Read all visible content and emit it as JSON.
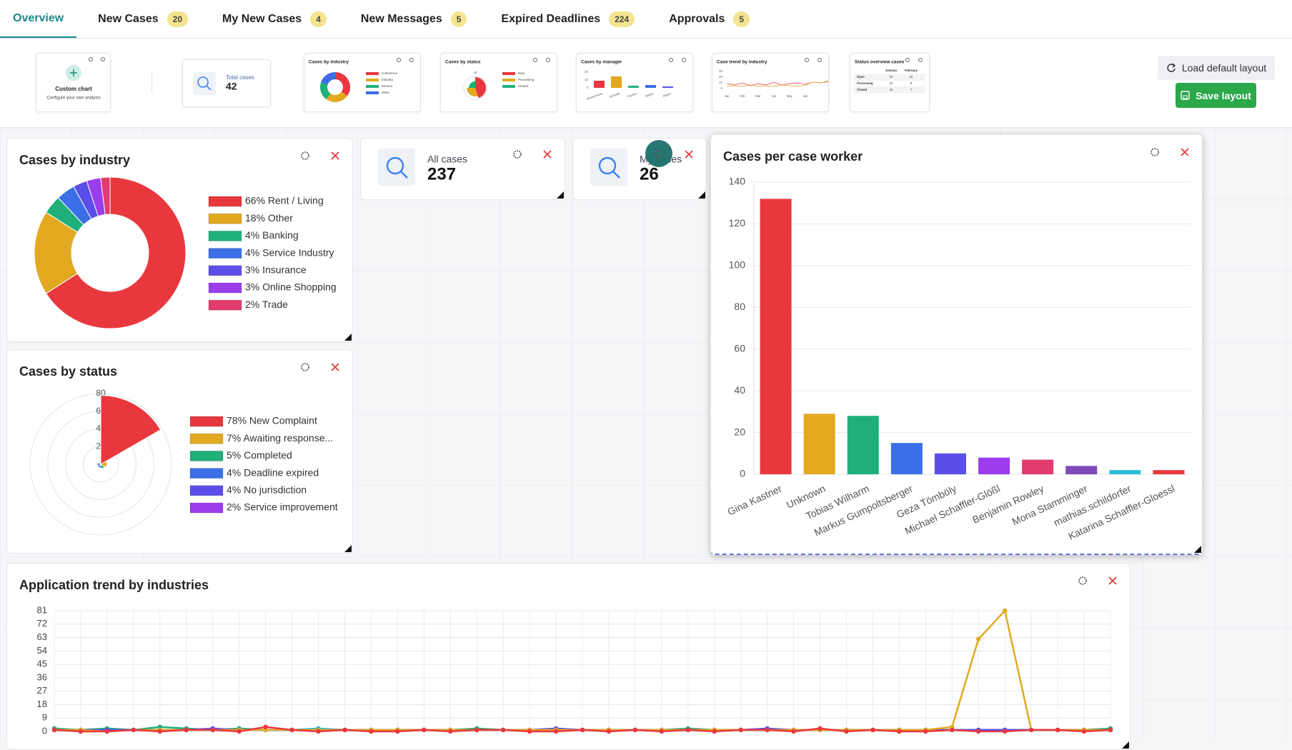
{
  "tabs": [
    {
      "label": "Overview"
    },
    {
      "label": "New Cases",
      "badge": 20
    },
    {
      "label": "My New Cases",
      "badge": 4
    },
    {
      "label": "New Messages",
      "badge": 5
    },
    {
      "label": "Expired Deadlines",
      "badge": 224
    },
    {
      "label": "Approvals",
      "badge": 5
    }
  ],
  "toolbar": {
    "custom_chart": {
      "title": "Custom chart",
      "subtitle": "Configure your own analysis"
    },
    "total_cases": {
      "label": "Total cases",
      "value": 42
    },
    "thumbnails": [
      {
        "title": "Cases by industry",
        "labels": [
          "Commerce",
          "Industry",
          "Service",
          "Other"
        ]
      },
      {
        "title": "Cases by status",
        "labels": [
          "New",
          "Processing",
          "Closed"
        ],
        "ticks": [
          "40"
        ]
      },
      {
        "title": "Cases by manager",
        "labels": [
          "Mustermann",
          "Schmidt",
          "Fischer",
          "Weber",
          "Meyer"
        ],
        "ticks": [
          "20",
          "10",
          "0"
        ]
      },
      {
        "title": "Case trend by industry",
        "labels": [
          "Jan",
          "Feb",
          "Mar",
          "Apr",
          "May",
          "Jun"
        ],
        "ticks": [
          "30",
          "20",
          "10",
          "0"
        ]
      },
      {
        "title": "Status overview cases",
        "columns": [
          "January",
          "February"
        ],
        "rows": [
          [
            "Open",
            "10",
            "10"
          ],
          [
            "Processing",
            "12",
            "9"
          ],
          [
            "Closed",
            "15",
            "7"
          ]
        ]
      }
    ],
    "load_default": "Load default layout",
    "save": "Save layout"
  },
  "stats": [
    {
      "label": "All cases",
      "value": 237
    },
    {
      "label": "My cases",
      "value": 26
    }
  ],
  "chart_data": [
    {
      "type": "pie",
      "title": "Cases by industry",
      "categories": [
        "66% Rent / Living",
        "18% Other",
        "4% Banking",
        "4% Service Industry",
        "3% Insurance",
        "3% Online Shopping",
        "2% Trade"
      ],
      "values": [
        66,
        18,
        4,
        4,
        3,
        3,
        2
      ],
      "colors": [
        "#e8383d",
        "#e2a920",
        "#1fb07a",
        "#3b6fe8",
        "#5b4ee8",
        "#9b3ded",
        "#e23b6d"
      ]
    },
    {
      "type": "polar",
      "title": "Cases by status",
      "categories": [
        "78% New Complaint",
        "7% Awaiting response...",
        "5% Completed",
        "4% Deadline expired",
        "4% No jurisdiction",
        "2% Service improvement"
      ],
      "values": [
        78,
        7,
        5,
        4,
        4,
        2
      ],
      "colors": [
        "#e8383d",
        "#e2a920",
        "#1fb07a",
        "#3b6fe8",
        "#5b4ee8",
        "#9b3ded"
      ],
      "rlim": [
        0,
        80
      ],
      "rticks": [
        20,
        40,
        60,
        80
      ]
    },
    {
      "type": "bar",
      "title": "Cases per case worker",
      "categories": [
        "Gina Kastner",
        "Unknown",
        "Tobias Wilharm",
        "Markus Gumpoltsberger",
        "Geza Tömböly",
        "Michael Schaffler-Glößl",
        "Benjamin Rowley",
        "Mona Stamminger",
        "mathias.schildorfer",
        "Katarina Schaffler-Gloessl"
      ],
      "values": [
        132,
        29,
        28,
        15,
        10,
        8,
        7,
        4,
        2,
        2
      ],
      "colors": [
        "#e8383d",
        "#e2a920",
        "#1fb07a",
        "#3b6fe8",
        "#5b4ee8",
        "#9b3ded",
        "#e23b6d",
        "#7e4ab8",
        "#2bbcd6",
        "#e8383d"
      ],
      "ylim": [
        0,
        140
      ],
      "yticks": [
        0,
        20,
        40,
        60,
        80,
        100,
        120,
        140
      ],
      "grid": true
    },
    {
      "type": "line",
      "title": "Application trend by industries",
      "ylim": [
        0,
        81
      ],
      "yticks": [
        0,
        9,
        18,
        27,
        36,
        45,
        54,
        63,
        72,
        81
      ],
      "grid": true,
      "series": [
        {
          "color": "#2bbcd6",
          "values": [
            1,
            1,
            1,
            1,
            1,
            1,
            1,
            1,
            1,
            1,
            2,
            1,
            1,
            1,
            1,
            1,
            1,
            1,
            1,
            1,
            1,
            1,
            1,
            1,
            1,
            1,
            1,
            1,
            1,
            1,
            1,
            1,
            1,
            1,
            1,
            1,
            1,
            1,
            1,
            1,
            1
          ]
        },
        {
          "color": "#1fb07a",
          "values": [
            2,
            1,
            2,
            1,
            3,
            2,
            1,
            2,
            1,
            1,
            1,
            1,
            1,
            1,
            1,
            1,
            2,
            1,
            1,
            1,
            1,
            1,
            1,
            1,
            2,
            1,
            1,
            1,
            1,
            1,
            1,
            1,
            1,
            1,
            1,
            1,
            1,
            1,
            1,
            1,
            2
          ]
        },
        {
          "color": "#5b4ee8",
          "values": [
            1,
            1,
            1,
            1,
            1,
            1,
            2,
            1,
            1,
            1,
            1,
            1,
            1,
            1,
            1,
            1,
            1,
            1,
            1,
            2,
            1,
            1,
            1,
            1,
            1,
            1,
            1,
            2,
            1,
            1,
            1,
            1,
            1,
            1,
            1,
            1,
            1,
            1,
            1,
            1,
            1
          ]
        },
        {
          "color": "#e2a920",
          "values": [
            1,
            1,
            0,
            1,
            1,
            1,
            1,
            1,
            1,
            1,
            1,
            1,
            1,
            1,
            1,
            1,
            1,
            1,
            1,
            1,
            1,
            1,
            1,
            1,
            1,
            1,
            1,
            1,
            1,
            1,
            1,
            1,
            1,
            1,
            3,
            62,
            81,
            1,
            1,
            1,
            1
          ]
        },
        {
          "color": "#e8383d",
          "values": [
            1,
            0,
            0,
            1,
            0,
            1,
            1,
            0,
            3,
            1,
            0,
            1,
            0,
            0,
            1,
            0,
            1,
            1,
            0,
            0,
            1,
            0,
            1,
            0,
            1,
            0,
            1,
            1,
            0,
            2,
            0,
            1,
            0,
            0,
            1,
            0,
            0,
            1,
            1,
            0,
            1
          ]
        }
      ]
    }
  ]
}
